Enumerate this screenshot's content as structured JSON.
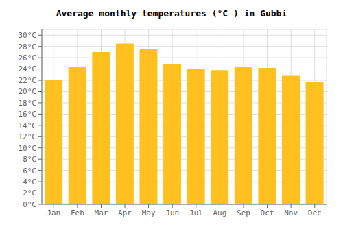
{
  "chart_data": {
    "type": "bar",
    "title": "Average monthly temperatures (°C ) in Gubbi",
    "categories": [
      "Jan",
      "Feb",
      "Mar",
      "Apr",
      "May",
      "Jun",
      "Jul",
      "Aug",
      "Sep",
      "Oct",
      "Nov",
      "Dec"
    ],
    "values": [
      22.0,
      24.3,
      27.0,
      28.5,
      27.6,
      24.9,
      24.0,
      23.8,
      24.3,
      24.2,
      22.8,
      21.7
    ],
    "color": "#FFC020",
    "ylim": [
      0,
      31
    ],
    "yticks": [
      {
        "value": 0,
        "label": "0°C"
      },
      {
        "value": 2,
        "label": "2°C"
      },
      {
        "value": 4,
        "label": "4°C"
      },
      {
        "value": 6,
        "label": "6°C"
      },
      {
        "value": 8,
        "label": "8°C"
      },
      {
        "value": 10,
        "label": "10°C"
      },
      {
        "value": 12,
        "label": "12°C"
      },
      {
        "value": 14,
        "label": "14°C"
      },
      {
        "value": 16,
        "label": "16°C"
      },
      {
        "value": 18,
        "label": "18°C"
      },
      {
        "value": 20,
        "label": "20°C"
      },
      {
        "value": 22,
        "label": "22°C"
      },
      {
        "value": 24,
        "label": "24°C"
      },
      {
        "value": 26,
        "label": "26°C"
      },
      {
        "value": 28,
        "label": "28°C"
      },
      {
        "value": 30,
        "label": "30°C"
      }
    ],
    "grid": true
  }
}
